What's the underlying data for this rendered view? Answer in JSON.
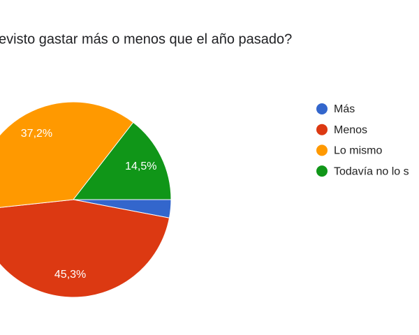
{
  "chart_data": {
    "type": "pie",
    "title": "evisto gastar más o menos que el año pasado?",
    "categories": [
      "Más",
      "Menos",
      "Lo mismo",
      "Todavía no lo s"
    ],
    "values": [
      3.0,
      45.3,
      37.2,
      14.5
    ],
    "value_labels": [
      null,
      "45,3%",
      "37,2%",
      "14,5%"
    ],
    "colors": [
      "#3366cc",
      "#dc3912",
      "#ff9900",
      "#109618"
    ],
    "legend": "right"
  }
}
